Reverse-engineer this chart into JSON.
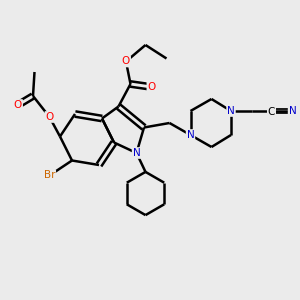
{
  "bg_color": "#ebebeb",
  "atom_colors": {
    "C": "#000000",
    "N": "#0000cc",
    "O": "#ff0000",
    "Br": "#cc6600",
    "default": "#000000"
  },
  "bond_color": "#000000",
  "bond_width": 1.8,
  "figsize": [
    3.0,
    3.0
  ],
  "dpi": 100
}
